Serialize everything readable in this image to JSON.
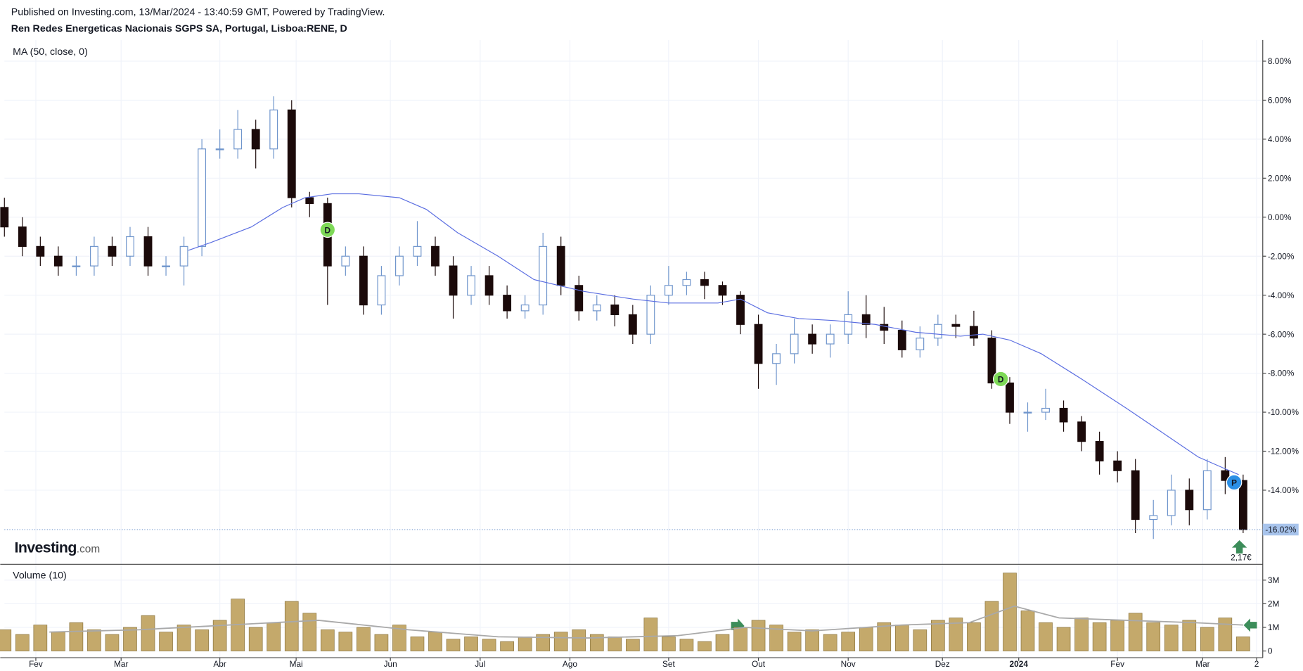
{
  "header": "Published on Investing.com, 13/Mar/2024 - 13:40:59 GMT, Powered by TradingView.",
  "logo": [
    "Investing",
    ".com"
  ],
  "chart_data": [
    {
      "type": "candlestick",
      "title": "Ren Redes Energeticas Nacionais SGPS SA, Portugal, Lisboa:RENE, D",
      "x": [
        0,
        4,
        8,
        12,
        16,
        20,
        24,
        28,
        32,
        36,
        40,
        44,
        48,
        52,
        56,
        60,
        64,
        68,
        72,
        76,
        80,
        84,
        88,
        92,
        96,
        100,
        104,
        108,
        112,
        116,
        120,
        124,
        128,
        132,
        136,
        140,
        144,
        148,
        152,
        156,
        160,
        164,
        168,
        172,
        176,
        180,
        184,
        188,
        192,
        196,
        200,
        204,
        208,
        212,
        216,
        220,
        224,
        228,
        232,
        236,
        240,
        244,
        248,
        252,
        256,
        260,
        264,
        268,
        272,
        276
      ],
      "open": [
        0.5,
        -0.5,
        -1.5,
        -2,
        -2.5,
        -2.5,
        -1.5,
        -2,
        -1,
        -2.5,
        -2.5,
        -1.5,
        3.5,
        3.5,
        4.5,
        3.5,
        5.5,
        1,
        0.7,
        -2.5,
        -2,
        -4.5,
        -3,
        -2,
        -1.5,
        -2.5,
        -4,
        -3,
        -4,
        -4.8,
        -4.5,
        -1.5,
        -3.5,
        -4.8,
        -4.5,
        -5,
        -6,
        -4,
        -3.5,
        -3.2,
        -3.5,
        -4,
        -5.5,
        -7.5,
        -7,
        -6,
        -6.5,
        -6,
        -5,
        -5.5,
        -5.8,
        -6.8,
        -6.2,
        -5.5,
        -5.6,
        -6.2,
        -8.5,
        -10,
        -10,
        -9.8,
        -10.5,
        -11.5,
        -12.5,
        -13,
        -15.5,
        -15.3,
        -14,
        -15,
        -13,
        -13.5
      ],
      "high": [
        1,
        0,
        -1,
        -1.5,
        -2,
        -1,
        -1,
        -0.5,
        -0.5,
        -2,
        -1,
        4,
        4.5,
        5.5,
        5,
        6.2,
        6,
        1.3,
        1,
        -1.5,
        -1.5,
        -2.5,
        -1.5,
        -0.2,
        -1,
        -2,
        -2.5,
        -2.5,
        -3.5,
        -4,
        -0.8,
        -1,
        -3,
        -4,
        -4,
        -4.5,
        -3.5,
        -2.5,
        -2.8,
        -2.8,
        -3.3,
        -3.8,
        -5,
        -6.5,
        -5.2,
        -5.5,
        -5.5,
        -3.8,
        -4,
        -4.6,
        -5.3,
        -5.6,
        -5,
        -5,
        -4.8,
        -5.8,
        -8.2,
        -9.5,
        -8.8,
        -9.4,
        -10.2,
        -11,
        -12,
        -12.4,
        -14.5,
        -13.2,
        -13.4,
        -12.4,
        -12.3,
        -13.2
      ],
      "low": [
        -1,
        -2,
        -2.5,
        -3,
        -3,
        -3,
        -2.5,
        -2.5,
        -3,
        -3,
        -3.5,
        -2,
        3,
        3,
        2.5,
        3,
        0.5,
        0,
        -4.5,
        -3,
        -5,
        -5,
        -3.5,
        -2.5,
        -3,
        -5.2,
        -4.5,
        -4.5,
        -5.2,
        -5.2,
        -5,
        -4,
        -5.3,
        -5.3,
        -5.6,
        -6.5,
        -6.5,
        -4.5,
        -4,
        -4.2,
        -4.5,
        -6,
        -8.8,
        -8.6,
        -7.5,
        -7,
        -7.2,
        -6.5,
        -6.2,
        -6.5,
        -7.2,
        -7.2,
        -6.6,
        -6.2,
        -6.6,
        -8.8,
        -10.6,
        -11,
        -10.4,
        -11,
        -12,
        -13.2,
        -13.6,
        -16.2,
        -16.5,
        -15.8,
        -15.8,
        -15.5,
        -14.2,
        -16.2
      ],
      "close": [
        -0.5,
        -1.5,
        -2,
        -2.5,
        -2.5,
        -1.5,
        -2,
        -1,
        -2.5,
        -2.5,
        -1.5,
        3.5,
        3.5,
        4.5,
        3.5,
        5.5,
        1,
        0.7,
        -2.5,
        -2,
        -4.5,
        -3,
        -2,
        -1.5,
        -2.5,
        -4,
        -3,
        -4,
        -4.8,
        -4.5,
        -1.5,
        -3.5,
        -4.8,
        -4.5,
        -5,
        -6,
        -4,
        -3.5,
        -3.2,
        -3.5,
        -4,
        -5.5,
        -7.5,
        -7,
        -6,
        -6.5,
        -6,
        -5,
        -5.5,
        -5.8,
        -6.8,
        -6.2,
        -5.5,
        -5.6,
        -6.2,
        -8.5,
        -10,
        -10,
        -9.8,
        -10.5,
        -11.5,
        -12.5,
        -13,
        -15.5,
        -15.3,
        -14,
        -15,
        -13,
        -13.5,
        -16.02
      ],
      "up_color": "#6f95cc",
      "down_color": "#1b0a0a",
      "ma": {
        "name": "MA (50, close, 0)",
        "color": "#5b6ee1",
        "x": [
          41,
          46,
          55,
          62,
          67,
          73,
          79,
          88,
          94,
          101,
          110,
          118,
          129,
          140,
          148,
          159,
          164,
          170,
          177,
          185,
          194,
          203,
          213,
          218,
          224,
          231,
          240,
          250,
          259,
          266,
          272,
          275
        ],
        "values": [
          -1.7,
          -1.3,
          -0.5,
          0.5,
          1,
          1.2,
          1.2,
          1,
          0.4,
          -0.8,
          -2,
          -3.2,
          -3.8,
          -4.2,
          -4.4,
          -4.4,
          -4.2,
          -4.9,
          -5.2,
          -5.3,
          -5.5,
          -5.9,
          -6.1,
          -6,
          -6.3,
          -7,
          -8.3,
          -9.8,
          -11.2,
          -12.3,
          -12.9,
          -13.2
        ]
      },
      "markers": [
        {
          "x": 72,
          "y": -0.65,
          "label": "D",
          "color": "#7ed957"
        },
        {
          "x": 222,
          "y": -8.3,
          "label": "D",
          "color": "#7ed957"
        },
        {
          "x": 274,
          "y": -13.6,
          "label": "P",
          "color": "#2b8fe6"
        }
      ],
      "last_price": {
        "value": -16.02,
        "label": "-16.02%"
      },
      "annotation": "2,17€",
      "xlim": [
        0,
        280
      ],
      "ylim": [
        -17.8,
        9
      ],
      "yticks": [
        {
          "value": 8,
          "label": "8.00%"
        },
        {
          "value": 6,
          "label": "6.00%"
        },
        {
          "value": 4,
          "label": "4.00%"
        },
        {
          "value": 2,
          "label": "2.00%"
        },
        {
          "value": 0,
          "label": "0.00%"
        },
        {
          "value": -2,
          "label": "-2.00%"
        },
        {
          "value": -4,
          "label": "-4.00%"
        },
        {
          "value": -6,
          "label": "-6.00%"
        },
        {
          "value": -8,
          "label": "-8.00%"
        },
        {
          "value": -10,
          "label": "-10.00%"
        },
        {
          "value": -12,
          "label": "-12.00%"
        },
        {
          "value": -14,
          "label": "-14.00%"
        }
      ],
      "grid": true
    },
    {
      "type": "bar",
      "title": "Volume (10)",
      "x": [
        0,
        4,
        8,
        12,
        16,
        20,
        24,
        28,
        32,
        36,
        40,
        44,
        48,
        52,
        56,
        60,
        64,
        68,
        72,
        76,
        80,
        84,
        88,
        92,
        96,
        100,
        104,
        108,
        112,
        116,
        120,
        124,
        128,
        132,
        136,
        140,
        144,
        148,
        152,
        156,
        160,
        164,
        168,
        172,
        176,
        180,
        184,
        188,
        192,
        196,
        200,
        204,
        208,
        212,
        216,
        220,
        224,
        228,
        232,
        236,
        240,
        244,
        248,
        252,
        256,
        260,
        264,
        268,
        272,
        276
      ],
      "values": [
        900000,
        700000,
        1100000,
        800000,
        1200000,
        900000,
        700000,
        1000000,
        1500000,
        800000,
        1100000,
        900000,
        1300000,
        2200000,
        1000000,
        1200000,
        2100000,
        1600000,
        900000,
        800000,
        1000000,
        700000,
        1100000,
        600000,
        800000,
        500000,
        600000,
        500000,
        400000,
        600000,
        700000,
        800000,
        900000,
        700000,
        600000,
        500000,
        1400000,
        600000,
        500000,
        400000,
        700000,
        1000000,
        1300000,
        1100000,
        800000,
        900000,
        700000,
        800000,
        1000000,
        1200000,
        1100000,
        900000,
        1300000,
        1400000,
        1200000,
        2100000,
        3300000,
        1700000,
        1200000,
        1000000,
        1400000,
        1200000,
        1300000,
        1600000,
        1200000,
        1100000,
        1300000,
        1000000,
        1400000,
        600000
      ],
      "color": "#c4a96b",
      "ma": {
        "color": "#a9a9a9",
        "x": [
          10,
          30,
          50,
          70,
          90,
          110,
          130,
          150,
          165,
          180,
          200,
          215,
          225,
          235,
          250,
          265,
          276
        ],
        "values": [
          800000,
          900000,
          1100000,
          1300000,
          900000,
          600000,
          550000,
          650000,
          1000000,
          850000,
          1100000,
          1200000,
          1900000,
          1400000,
          1300000,
          1200000,
          1100000
        ]
      },
      "xlim": [
        0,
        280
      ],
      "ylim": [
        0,
        3670000
      ],
      "yticks": [
        0,
        {
          "value": 1000000,
          "label": "1M"
        },
        {
          "value": 2000000,
          "label": "2M"
        },
        {
          "value": 3000000,
          "label": "3M"
        }
      ],
      "xticks": [
        {
          "value": 7,
          "label": "Fev"
        },
        {
          "value": 26,
          "label": "Mar"
        },
        {
          "value": 48,
          "label": "Abr"
        },
        {
          "value": 65,
          "label": "Mai"
        },
        {
          "value": 86,
          "label": "Jun"
        },
        {
          "value": 106,
          "label": "Jul"
        },
        {
          "value": 126,
          "label": "Ago"
        },
        {
          "value": 148,
          "label": "Set"
        },
        {
          "value": 168,
          "label": "Out"
        },
        {
          "value": 188,
          "label": "Nov"
        },
        {
          "value": 209,
          "label": "Dez"
        },
        {
          "value": 226,
          "label": "2024"
        },
        {
          "value": 248,
          "label": "Fev"
        },
        {
          "value": 267,
          "label": "Mar"
        },
        {
          "value": 279,
          "label": "2"
        }
      ],
      "grid": true
    }
  ]
}
